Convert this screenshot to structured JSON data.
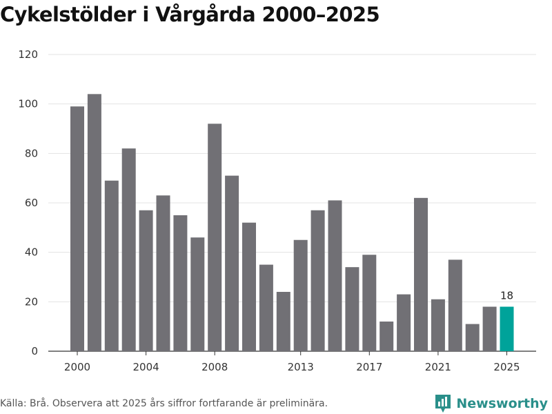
{
  "title": "Cykelstölder i Vårgårda 2000–2025",
  "footer": {
    "source": "Källa: Brå. Observera att 2025 års siffror fortfarande är preliminära.",
    "brand": "Newsworthy"
  },
  "colors": {
    "bar": "#717075",
    "highlight": "#00a39a",
    "grid": "#e3e3e3",
    "brand": "#2a8f8a"
  },
  "chart_data": {
    "type": "bar",
    "title": "Cykelstölder i Vårgårda 2000–2025",
    "xlabel": "",
    "ylabel": "",
    "categories": [
      "2000",
      "2001",
      "2002",
      "2003",
      "2004",
      "2005",
      "2006",
      "2007",
      "2008",
      "2009",
      "2010",
      "2011",
      "2012",
      "2013",
      "2014",
      "2015",
      "2016",
      "2017",
      "2018",
      "2019",
      "2020",
      "2021",
      "2022",
      "2023",
      "2024",
      "2025"
    ],
    "values": [
      99,
      104,
      69,
      82,
      57,
      63,
      55,
      46,
      92,
      71,
      52,
      35,
      24,
      45,
      57,
      61,
      34,
      39,
      12,
      23,
      62,
      21,
      37,
      11,
      18,
      18
    ],
    "ylim": [
      0,
      120
    ],
    "yticks": [
      0,
      20,
      40,
      60,
      80,
      100,
      120
    ],
    "xticks": [
      {
        "index": 0,
        "label": "2000"
      },
      {
        "index": 4,
        "label": "2004"
      },
      {
        "index": 8,
        "label": "2008"
      },
      {
        "index": 13,
        "label": "2013"
      },
      {
        "index": 17,
        "label": "2017"
      },
      {
        "index": 21,
        "label": "2021"
      },
      {
        "index": 25,
        "label": "2025"
      }
    ],
    "highlight_index": 25,
    "annotations": [
      {
        "index": 25,
        "text": "18"
      }
    ],
    "grid": true,
    "legend": "none"
  }
}
